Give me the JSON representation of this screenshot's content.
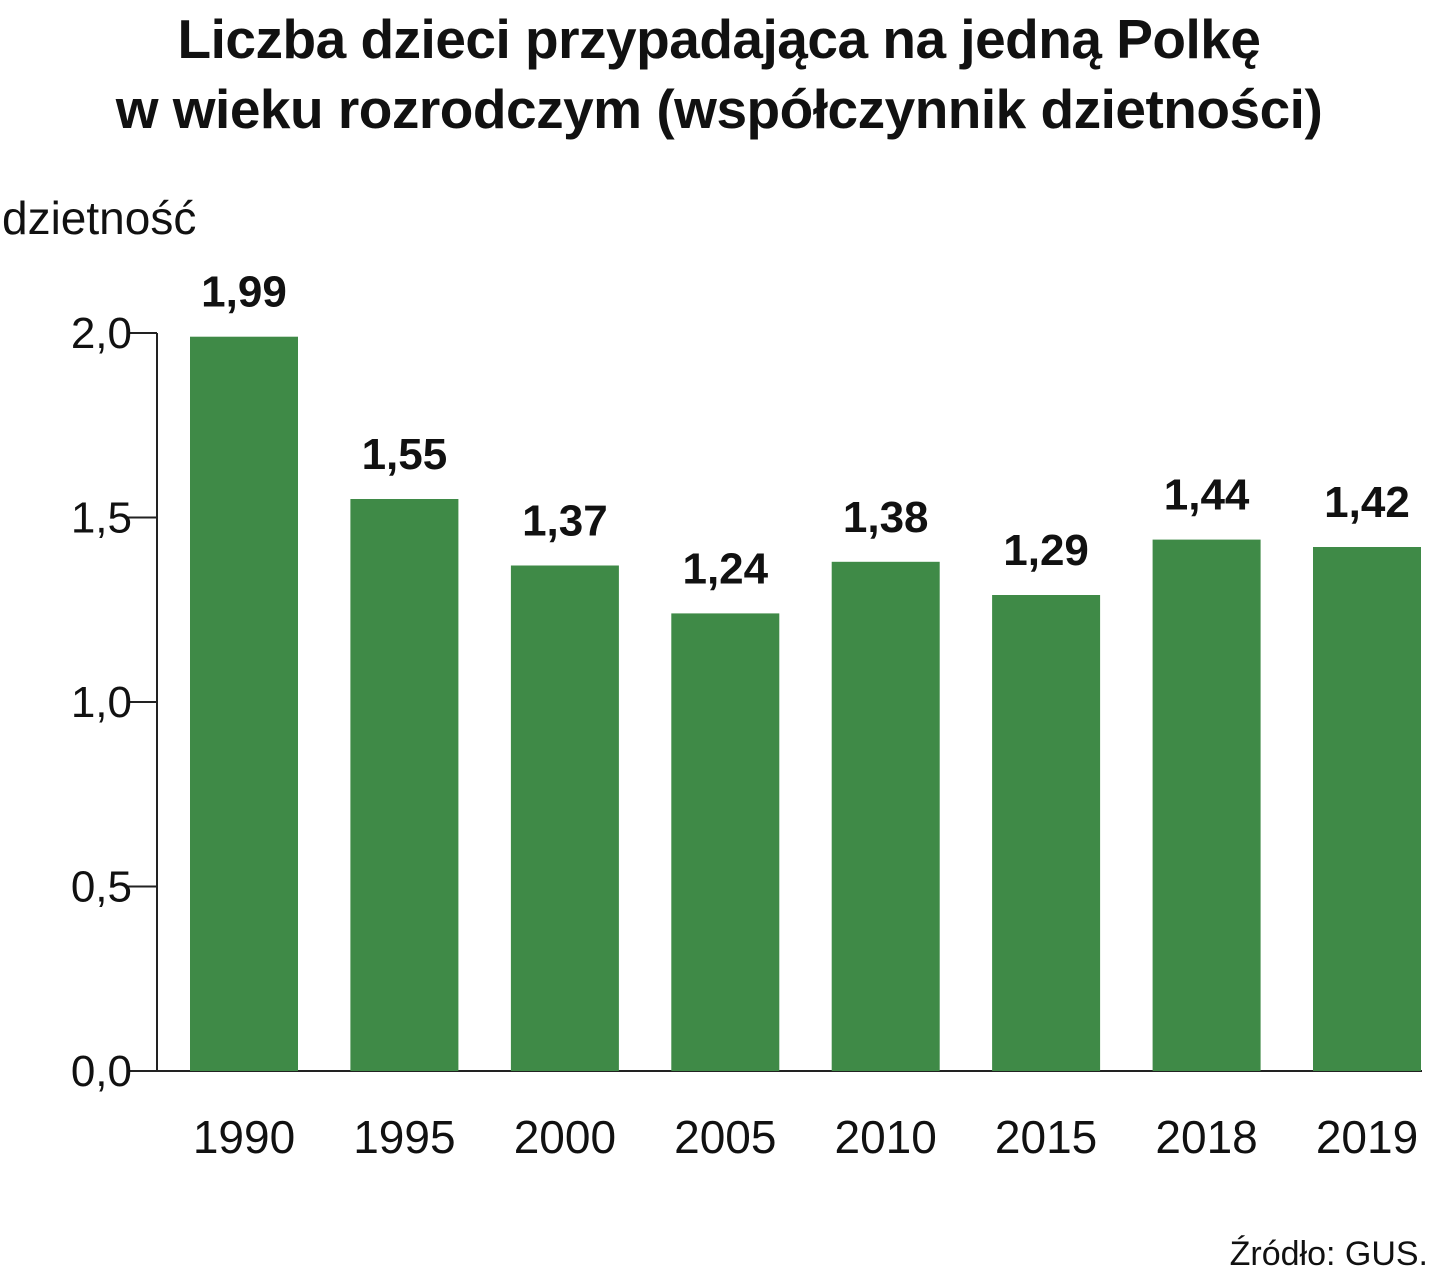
{
  "chart_data": {
    "type": "bar",
    "title_lines": [
      "Liczba dzieci przypadająca na jedną Polkę",
      "w wieku rozrodczym (współczynnik dzietności)"
    ],
    "ylabel": "dzietność",
    "xlabel": "",
    "categories": [
      "1990",
      "1995",
      "2000",
      "2005",
      "2010",
      "2015",
      "2018",
      "2019"
    ],
    "values": [
      1.99,
      1.55,
      1.37,
      1.24,
      1.38,
      1.29,
      1.44,
      1.42
    ],
    "value_labels": [
      "1,99",
      "1,55",
      "1,37",
      "1,24",
      "1,38",
      "1,29",
      "1,44",
      "1,42"
    ],
    "yticks": [
      0,
      0.5,
      1.0,
      1.5,
      2.0
    ],
    "ytick_labels": [
      "0,0",
      "0,5",
      "1,0",
      "1,5",
      "2,0"
    ],
    "ylim": [
      0,
      2.0
    ],
    "grid": false,
    "legend": "none",
    "bar_color": "#3f8a47",
    "source": "Źródło: GUS."
  }
}
